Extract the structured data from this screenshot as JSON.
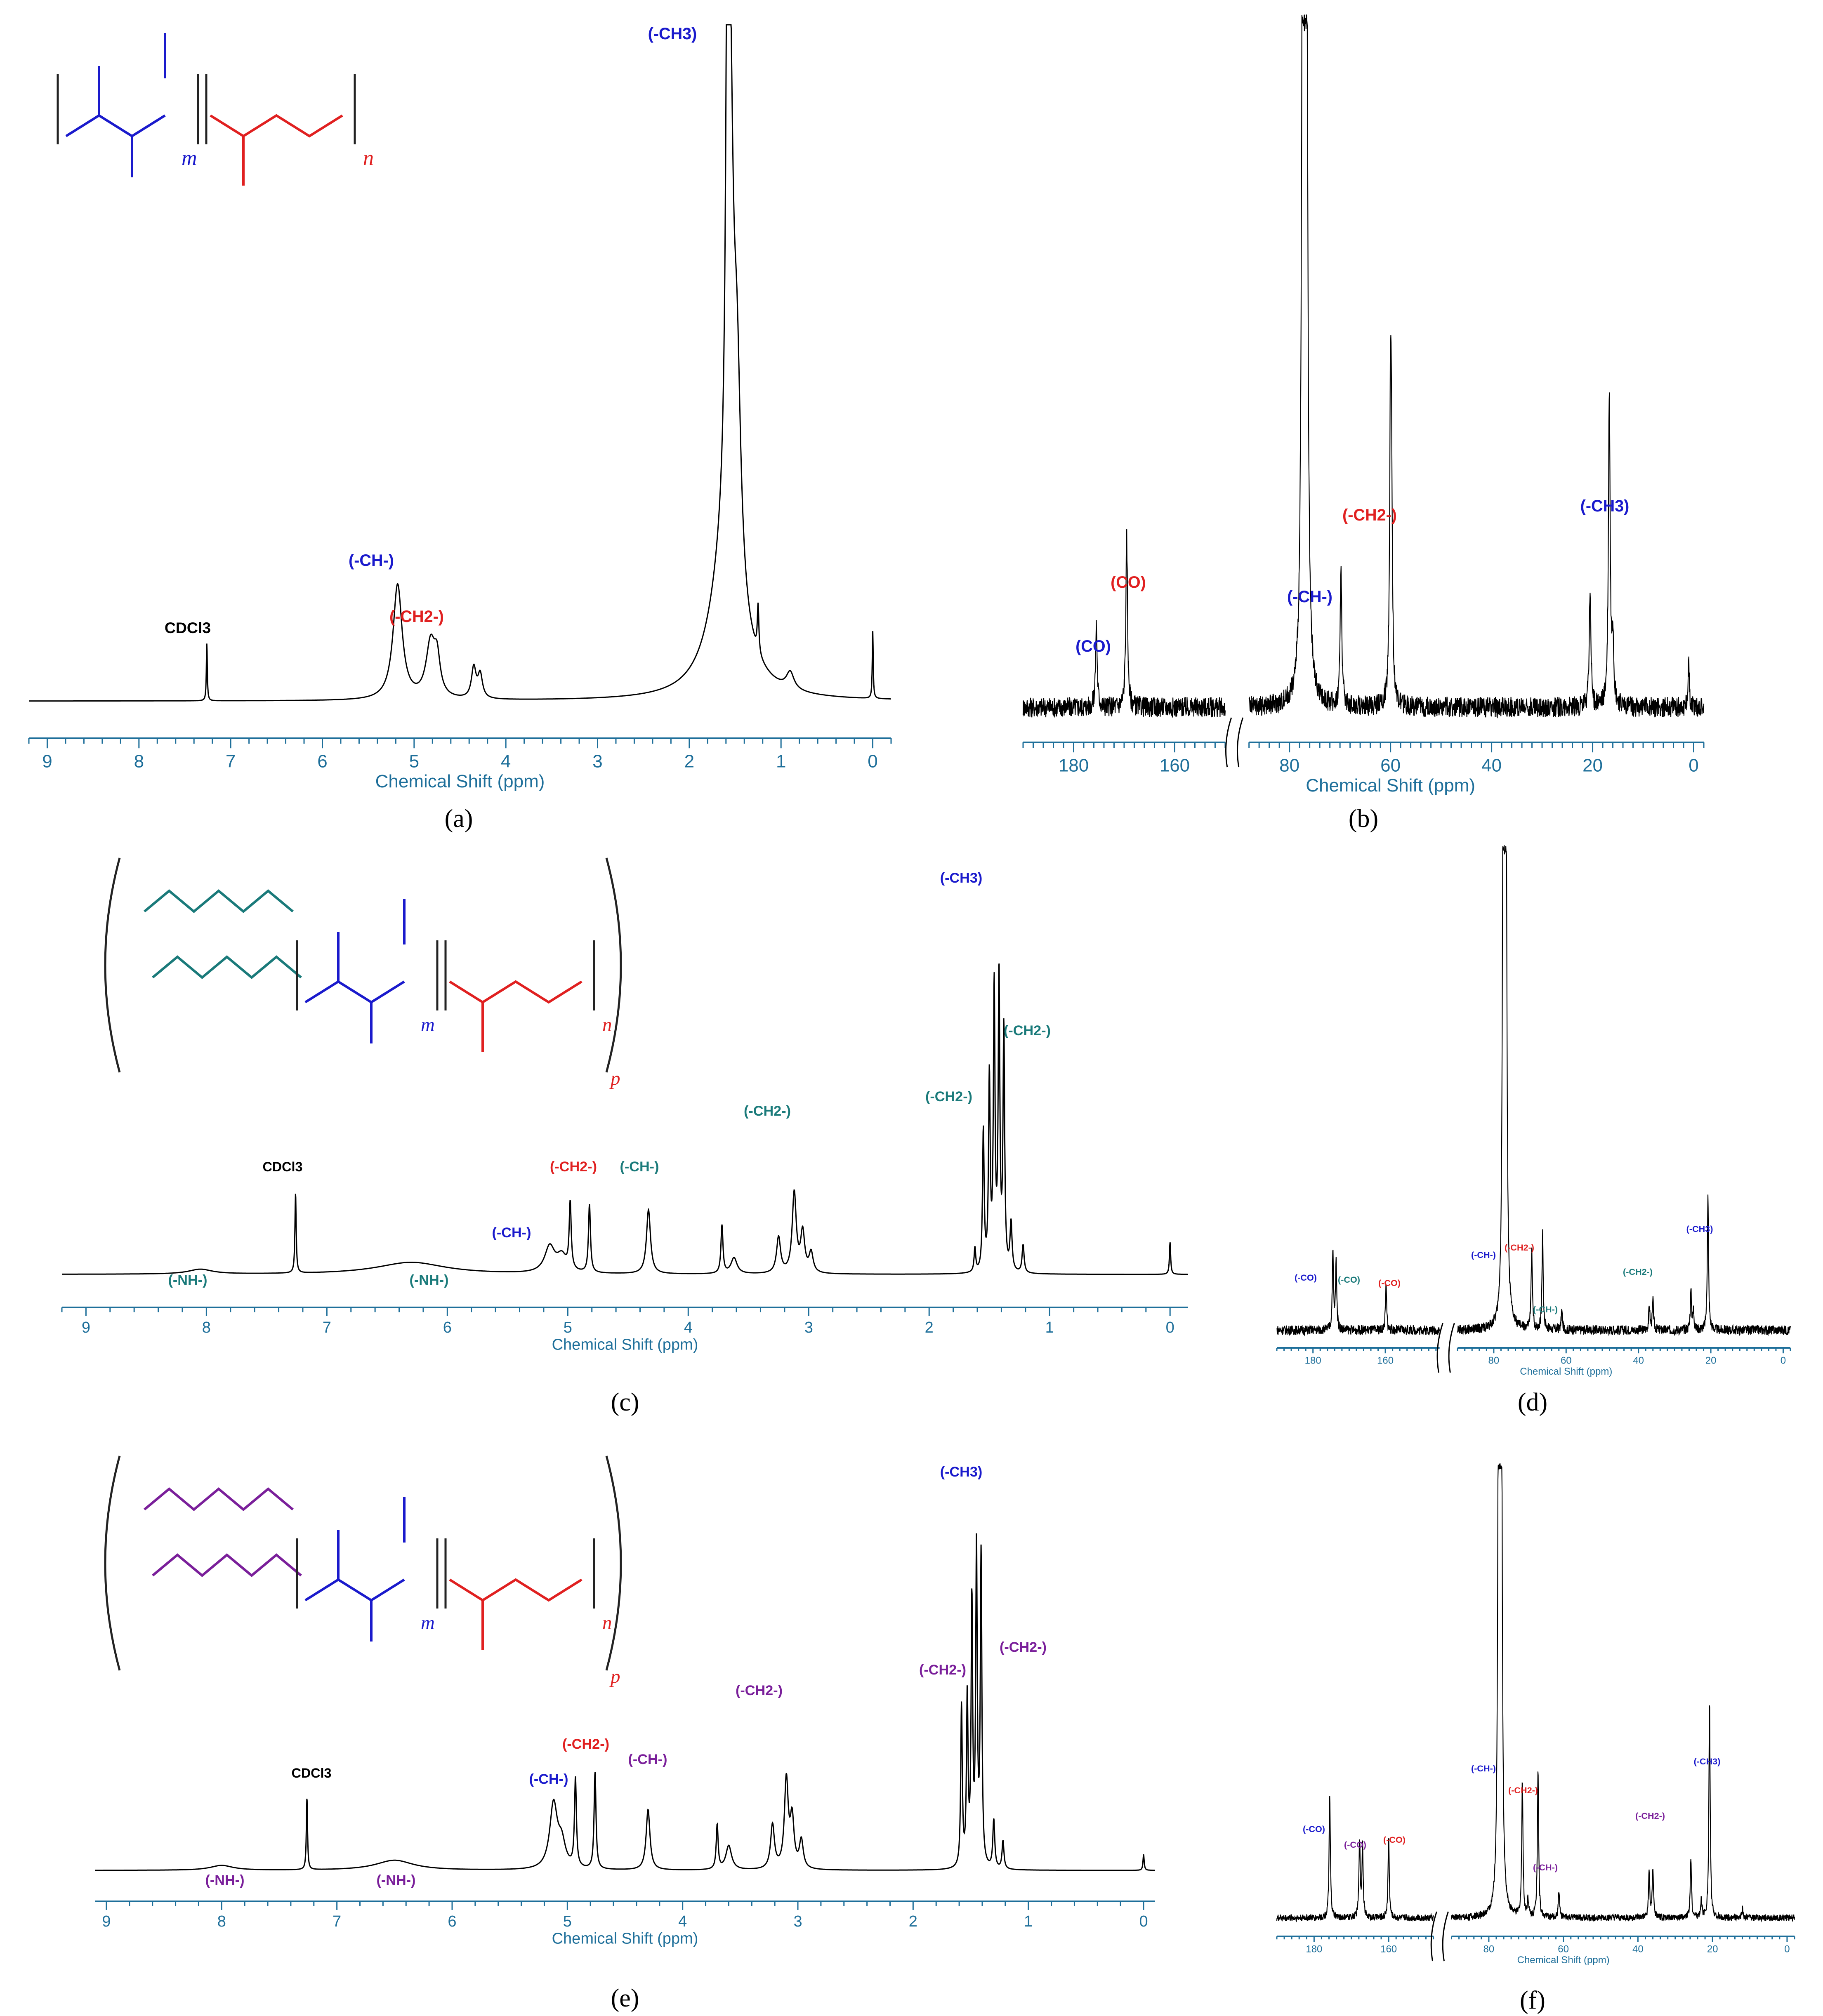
{
  "colors": {
    "axis": "#1e6f9a",
    "spectrum": "#000000",
    "blue": "#1a1acc",
    "red": "#e02020",
    "teal": "#1a7a7a",
    "purple": "#7a1f9a",
    "black": "#000000"
  },
  "chart_data": [
    {
      "type": "line",
      "caption": "(a)",
      "xlabel": "Chemical Shift (ppm)",
      "xlim": [
        9.2,
        -0.2
      ],
      "reversed_x": true,
      "x_ticks": [
        "9",
        "8",
        "7",
        "6",
        "5",
        "4",
        "3",
        "2",
        "1",
        "0"
      ],
      "x_tick_values": [
        9,
        8,
        7,
        6,
        5,
        4,
        3,
        2,
        1,
        0
      ],
      "structure": {
        "labels": [
          "m",
          "n"
        ],
        "colors": [
          "blue",
          "red"
        ]
      },
      "peaks": [
        {
          "x": 7.26,
          "h": 0.085,
          "w": 0.006
        },
        {
          "x": 5.18,
          "h": 0.17,
          "w": 0.06
        },
        {
          "x": 4.82,
          "h": 0.08,
          "w": 0.06
        },
        {
          "x": 4.75,
          "h": 0.05,
          "w": 0.04
        },
        {
          "x": 4.35,
          "h": 0.045,
          "w": 0.03
        },
        {
          "x": 4.28,
          "h": 0.035,
          "w": 0.03
        },
        {
          "x": 1.58,
          "h": 0.93,
          "w": 0.02
        },
        {
          "x": 1.55,
          "h": 0.5,
          "w": 0.04
        },
        {
          "x": 1.48,
          "h": 0.3,
          "w": 0.05
        },
        {
          "x": 1.6,
          "h": 0.2,
          "w": 0.2
        },
        {
          "x": 1.25,
          "h": 0.07,
          "w": 0.01
        },
        {
          "x": 0.9,
          "h": 0.025,
          "w": 0.05
        },
        {
          "x": 0.0,
          "h": 0.1,
          "w": 0.006
        }
      ],
      "annotations": [
        {
          "text": "(-CH3)",
          "x": 1.6,
          "color": "blue"
        },
        {
          "text": "(-CH-)",
          "x": 5.2,
          "color": "blue"
        },
        {
          "text": "(-CH2-)",
          "x": 4.8,
          "color": "red"
        },
        {
          "text": "CDCl3",
          "x": 7.26,
          "color": "black"
        }
      ]
    },
    {
      "type": "line",
      "caption": "(b)",
      "xlabel": "Chemical Shift (ppm)",
      "broken_axis": true,
      "x_segments": [
        [
          190,
          150
        ],
        [
          88,
          -2
        ]
      ],
      "x_ticks": [
        "180",
        "160",
        "80",
        "60",
        "40",
        "20",
        "0"
      ],
      "x_tick_values": [
        180,
        160,
        80,
        60,
        40,
        20,
        0
      ],
      "noise": 0.03,
      "peaks": [
        {
          "x": 175.5,
          "h": 0.12,
          "w": 0.2
        },
        {
          "x": 169.5,
          "h": 0.25,
          "w": 0.2
        },
        {
          "x": 77.4,
          "h": 1.0,
          "w": 0.25
        },
        {
          "x": 77.0,
          "h": 1.0,
          "w": 0.25
        },
        {
          "x": 76.6,
          "h": 1.0,
          "w": 0.25
        },
        {
          "x": 69.8,
          "h": 0.2,
          "w": 0.2
        },
        {
          "x": 60.0,
          "h": 0.41,
          "w": 0.2
        },
        {
          "x": 59.8,
          "h": 0.26,
          "w": 0.2
        },
        {
          "x": 20.5,
          "h": 0.17,
          "w": 0.2
        },
        {
          "x": 16.7,
          "h": 0.46,
          "w": 0.2
        },
        {
          "x": 16.0,
          "h": 0.1,
          "w": 0.2
        },
        {
          "x": 1.0,
          "h": 0.07,
          "w": 0.15
        }
      ],
      "annotations": [
        {
          "text": "(CO)",
          "x": 175.5,
          "color": "blue"
        },
        {
          "text": "(CO)",
          "x": 169.5,
          "color": "red"
        },
        {
          "text": "(-CH-)",
          "x": 69.8,
          "color": "blue"
        },
        {
          "text": "(-CH2-)",
          "x": 60.0,
          "color": "red"
        },
        {
          "text": "(-CH3)",
          "x": 16.7,
          "color": "blue"
        }
      ]
    },
    {
      "type": "line",
      "caption": "(c)",
      "xlabel": "Chemical Shift (ppm)",
      "xlim": [
        9.2,
        -0.15
      ],
      "reversed_x": true,
      "x_ticks": [
        "9",
        "8",
        "7",
        "6",
        "5",
        "4",
        "3",
        "2",
        "1",
        "0"
      ],
      "x_tick_values": [
        9,
        8,
        7,
        6,
        5,
        4,
        3,
        2,
        1,
        0
      ],
      "structure": {
        "labels": [
          "m",
          "n",
          "p"
        ],
        "colors": [
          "teal",
          "blue",
          "red"
        ]
      },
      "peaks": [
        {
          "x": 8.05,
          "h": 0.012,
          "w": 0.12
        },
        {
          "x": 7.26,
          "h": 0.2,
          "w": 0.006
        },
        {
          "x": 6.3,
          "h": 0.03,
          "w": 0.35
        },
        {
          "x": 5.15,
          "h": 0.065,
          "w": 0.05
        },
        {
          "x": 5.05,
          "h": 0.04,
          "w": 0.05
        },
        {
          "x": 4.98,
          "h": 0.165,
          "w": 0.01
        },
        {
          "x": 4.82,
          "h": 0.17,
          "w": 0.01
        },
        {
          "x": 4.33,
          "h": 0.16,
          "w": 0.02
        },
        {
          "x": 3.72,
          "h": 0.12,
          "w": 0.01
        },
        {
          "x": 3.62,
          "h": 0.04,
          "w": 0.03
        },
        {
          "x": 3.25,
          "h": 0.09,
          "w": 0.02
        },
        {
          "x": 3.12,
          "h": 0.2,
          "w": 0.02
        },
        {
          "x": 3.05,
          "h": 0.1,
          "w": 0.02
        },
        {
          "x": 2.98,
          "h": 0.05,
          "w": 0.02
        },
        {
          "x": 1.62,
          "h": 0.06,
          "w": 0.008
        },
        {
          "x": 1.55,
          "h": 0.35,
          "w": 0.008
        },
        {
          "x": 1.5,
          "h": 0.48,
          "w": 0.008
        },
        {
          "x": 1.46,
          "h": 0.7,
          "w": 0.008
        },
        {
          "x": 1.42,
          "h": 0.73,
          "w": 0.008
        },
        {
          "x": 1.38,
          "h": 0.6,
          "w": 0.008
        },
        {
          "x": 1.32,
          "h": 0.12,
          "w": 0.01
        },
        {
          "x": 1.22,
          "h": 0.07,
          "w": 0.01
        },
        {
          "x": 0.0,
          "h": 0.08,
          "w": 0.006
        }
      ],
      "annotations": [
        {
          "text": "(-CH3)",
          "x": 1.45,
          "color": "blue"
        },
        {
          "text": "(-CH2-)",
          "x": 1.1,
          "color": "teal"
        },
        {
          "text": "(-CH2-)",
          "x": 1.75,
          "color": "teal"
        },
        {
          "text": "(-CH2-)",
          "x": 3.3,
          "color": "teal"
        },
        {
          "text": "(-CH-)",
          "x": 4.3,
          "color": "teal"
        },
        {
          "text": "(-CH2-)",
          "x": 4.9,
          "color": "red"
        },
        {
          "text": "(-CH-)",
          "x": 5.45,
          "color": "blue"
        },
        {
          "text": "(-NH-)",
          "x": 6.1,
          "color": "teal"
        },
        {
          "text": "(-NH-)",
          "x": 7.95,
          "color": "teal"
        },
        {
          "text": "CDCl3",
          "x": 7.26,
          "color": "black"
        }
      ]
    },
    {
      "type": "line",
      "caption": "(d)",
      "xlabel": "Chemical Shift (ppm)",
      "broken_axis": true,
      "x_segments": [
        [
          190,
          145
        ],
        [
          90,
          -2
        ]
      ],
      "x_ticks": [
        "180",
        "160",
        "80",
        "60",
        "40",
        "20",
        "0"
      ],
      "x_tick_values": [
        180,
        160,
        80,
        60,
        40,
        20,
        0
      ],
      "noise": 0.02,
      "peaks": [
        {
          "x": 174.5,
          "h": 0.16,
          "w": 0.2
        },
        {
          "x": 173.6,
          "h": 0.14,
          "w": 0.2
        },
        {
          "x": 159.8,
          "h": 0.09,
          "w": 0.2
        },
        {
          "x": 77.4,
          "h": 0.99,
          "w": 0.25
        },
        {
          "x": 77.0,
          "h": 0.99,
          "w": 0.25
        },
        {
          "x": 76.6,
          "h": 0.99,
          "w": 0.25
        },
        {
          "x": 69.5,
          "h": 0.17,
          "w": 0.2
        },
        {
          "x": 66.5,
          "h": 0.2,
          "w": 0.2
        },
        {
          "x": 61.2,
          "h": 0.04,
          "w": 0.2
        },
        {
          "x": 37.0,
          "h": 0.05,
          "w": 0.2
        },
        {
          "x": 36.0,
          "h": 0.06,
          "w": 0.2
        },
        {
          "x": 25.5,
          "h": 0.08,
          "w": 0.2
        },
        {
          "x": 24.8,
          "h": 0.04,
          "w": 0.2
        },
        {
          "x": 20.8,
          "h": 0.28,
          "w": 0.2
        }
      ],
      "annotations": [
        {
          "text": "(-CO)",
          "x": 178,
          "color": "blue"
        },
        {
          "text": "(-CO)",
          "x": 171,
          "color": "teal"
        },
        {
          "text": "(-CO)",
          "x": 160,
          "color": "red"
        },
        {
          "text": "(-CH-)",
          "x": 69.5,
          "color": "blue"
        },
        {
          "text": "(-CH2-)",
          "x": 65.0,
          "color": "red"
        },
        {
          "text": "(-CH-)",
          "x": 61.5,
          "color": "teal"
        },
        {
          "text": "(-CH2-)",
          "x": 30.0,
          "color": "teal"
        },
        {
          "text": "(-CH3)",
          "x": 20.8,
          "color": "blue"
        }
      ]
    },
    {
      "type": "line",
      "caption": "(e)",
      "xlabel": "Chemical Shift (ppm)",
      "xlim": [
        9.1,
        -0.1
      ],
      "reversed_x": true,
      "x_ticks": [
        "9",
        "8",
        "7",
        "6",
        "5",
        "4",
        "3",
        "2",
        "1",
        "0"
      ],
      "x_tick_values": [
        9,
        8,
        7,
        6,
        5,
        4,
        3,
        2,
        1,
        0
      ],
      "structure": {
        "labels": [
          "m",
          "n",
          "p"
        ],
        "colors": [
          "purple",
          "blue",
          "red"
        ]
      },
      "peaks": [
        {
          "x": 8.0,
          "h": 0.012,
          "w": 0.12
        },
        {
          "x": 7.26,
          "h": 0.18,
          "w": 0.006
        },
        {
          "x": 6.5,
          "h": 0.025,
          "w": 0.2
        },
        {
          "x": 5.12,
          "h": 0.16,
          "w": 0.04
        },
        {
          "x": 5.05,
          "h": 0.06,
          "w": 0.04
        },
        {
          "x": 4.93,
          "h": 0.22,
          "w": 0.01
        },
        {
          "x": 4.76,
          "h": 0.24,
          "w": 0.01
        },
        {
          "x": 4.3,
          "h": 0.15,
          "w": 0.02
        },
        {
          "x": 3.7,
          "h": 0.11,
          "w": 0.01
        },
        {
          "x": 3.6,
          "h": 0.06,
          "w": 0.03
        },
        {
          "x": 3.22,
          "h": 0.11,
          "w": 0.02
        },
        {
          "x": 3.1,
          "h": 0.22,
          "w": 0.02
        },
        {
          "x": 3.05,
          "h": 0.12,
          "w": 0.02
        },
        {
          "x": 2.97,
          "h": 0.07,
          "w": 0.02
        },
        {
          "x": 1.58,
          "h": 0.4,
          "w": 0.008
        },
        {
          "x": 1.53,
          "h": 0.42,
          "w": 0.008
        },
        {
          "x": 1.49,
          "h": 0.65,
          "w": 0.008
        },
        {
          "x": 1.45,
          "h": 0.78,
          "w": 0.008
        },
        {
          "x": 1.41,
          "h": 0.77,
          "w": 0.008
        },
        {
          "x": 1.3,
          "h": 0.12,
          "w": 0.01
        },
        {
          "x": 1.22,
          "h": 0.07,
          "w": 0.01
        },
        {
          "x": 0.0,
          "h": 0.04,
          "w": 0.006
        }
      ],
      "annotations": [
        {
          "text": "(-CH3)",
          "x": 1.45,
          "color": "blue"
        },
        {
          "text": "(-CH2-)",
          "x": 1.1,
          "color": "purple"
        },
        {
          "text": "(-CH2-)",
          "x": 1.8,
          "color": "purple"
        },
        {
          "text": "(-CH2-)",
          "x": 3.3,
          "color": "purple"
        },
        {
          "text": "(-CH-)",
          "x": 4.3,
          "color": "purple"
        },
        {
          "text": "(-CH2-)",
          "x": 4.85,
          "color": "red"
        },
        {
          "text": "(-CH-)",
          "x": 5.15,
          "color": "blue"
        },
        {
          "text": "(-NH-)",
          "x": 6.5,
          "color": "purple"
        },
        {
          "text": "(-NH-)",
          "x": 7.95,
          "color": "purple"
        },
        {
          "text": "CDCl3",
          "x": 7.26,
          "color": "black"
        }
      ]
    },
    {
      "type": "line",
      "caption": "(f)",
      "xlabel": "Chemical Shift (ppm)",
      "broken_axis": true,
      "x_segments": [
        [
          190,
          148
        ],
        [
          90,
          -2
        ]
      ],
      "x_ticks": [
        "180",
        "160",
        "80",
        "60",
        "40",
        "20",
        "0"
      ],
      "x_tick_values": [
        180,
        160,
        80,
        60,
        40,
        20,
        0
      ],
      "noise": 0.015,
      "peaks": [
        {
          "x": 175.8,
          "h": 0.27,
          "w": 0.2
        },
        {
          "x": 167.8,
          "h": 0.17,
          "w": 0.2
        },
        {
          "x": 167.0,
          "h": 0.16,
          "w": 0.2
        },
        {
          "x": 160.0,
          "h": 0.18,
          "w": 0.2
        },
        {
          "x": 77.4,
          "h": 0.99,
          "w": 0.25
        },
        {
          "x": 77.0,
          "h": 0.99,
          "w": 0.25
        },
        {
          "x": 76.6,
          "h": 0.99,
          "w": 0.25
        },
        {
          "x": 71.0,
          "h": 0.3,
          "w": 0.2
        },
        {
          "x": 69.5,
          "h": 0.04,
          "w": 0.2
        },
        {
          "x": 66.8,
          "h": 0.33,
          "w": 0.2
        },
        {
          "x": 61.2,
          "h": 0.06,
          "w": 0.2
        },
        {
          "x": 37.0,
          "h": 0.1,
          "w": 0.2
        },
        {
          "x": 36.0,
          "h": 0.11,
          "w": 0.2
        },
        {
          "x": 25.8,
          "h": 0.13,
          "w": 0.2
        },
        {
          "x": 23.0,
          "h": 0.04,
          "w": 0.2
        },
        {
          "x": 20.8,
          "h": 0.48,
          "w": 0.2
        },
        {
          "x": 12.0,
          "h": 0.02,
          "w": 0.2
        }
      ],
      "annotations": [
        {
          "text": "(-CO)",
          "x": 177,
          "color": "blue"
        },
        {
          "text": "(-CO)",
          "x": 167,
          "color": "purple"
        },
        {
          "text": "(-CO)",
          "x": 160,
          "color": "red"
        },
        {
          "text": "(-CH-)",
          "x": 71.0,
          "color": "blue"
        },
        {
          "text": "(-CH2-)",
          "x": 66.8,
          "color": "red"
        },
        {
          "text": "(-CH-)",
          "x": 61.5,
          "color": "purple"
        },
        {
          "text": "(-CH2-)",
          "x": 30.0,
          "color": "purple"
        },
        {
          "text": "(-CH3)",
          "x": 20.8,
          "color": "blue"
        }
      ]
    }
  ]
}
